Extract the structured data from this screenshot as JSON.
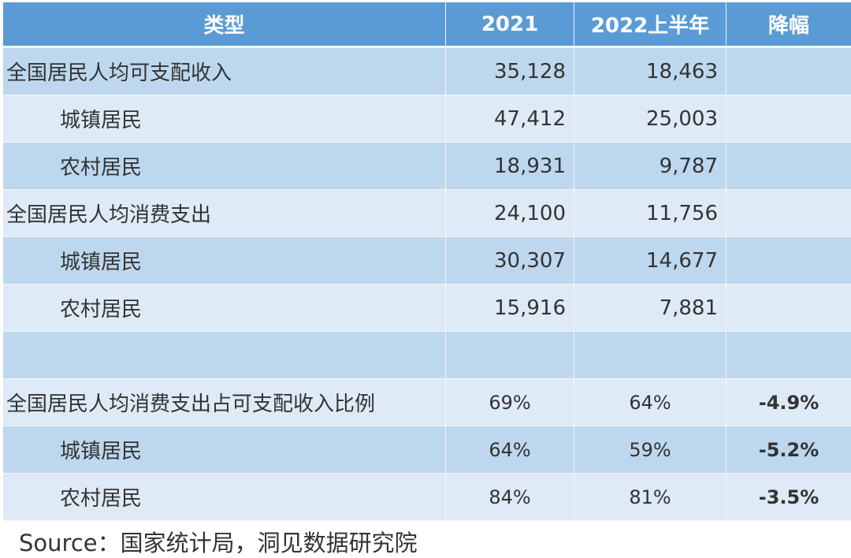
{
  "table": {
    "headers": [
      "类型",
      "2021",
      "2022上半年",
      "降幅"
    ],
    "rows": [
      {
        "label": "全国居民人均可支配收入",
        "sub": false,
        "y2021": "35,128",
        "y2022h1": "18,463",
        "change": ""
      },
      {
        "label": "城镇居民",
        "sub": true,
        "y2021": "47,412",
        "y2022h1": "25,003",
        "change": ""
      },
      {
        "label": "农村居民",
        "sub": true,
        "y2021": "18,931",
        "y2022h1": "9,787",
        "change": ""
      },
      {
        "label": "全国居民人均消费支出",
        "sub": false,
        "y2021": "24,100",
        "y2022h1": "11,756",
        "change": ""
      },
      {
        "label": "城镇居民",
        "sub": true,
        "y2021": "30,307",
        "y2022h1": "14,677",
        "change": ""
      },
      {
        "label": "农村居民",
        "sub": true,
        "y2021": "15,916",
        "y2022h1": "7,881",
        "change": ""
      },
      {
        "label": "",
        "sub": false,
        "y2021": "",
        "y2022h1": "",
        "change": ""
      },
      {
        "label": "全国居民人均消费支出占可支配收入比例",
        "sub": false,
        "y2021": "69%",
        "y2022h1": "64%",
        "change": "-4.9%"
      },
      {
        "label": "城镇居民",
        "sub": true,
        "y2021": "64%",
        "y2022h1": "59%",
        "change": "-5.2%"
      },
      {
        "label": "农村居民",
        "sub": true,
        "y2021": "84%",
        "y2022h1": "81%",
        "change": "-3.5%"
      }
    ]
  },
  "source": "Source：国家统计局，洞见数据研究院",
  "colors": {
    "header": "#5b9bd5",
    "row_dark": "#bdd7ee",
    "row_light": "#deeaf6"
  }
}
